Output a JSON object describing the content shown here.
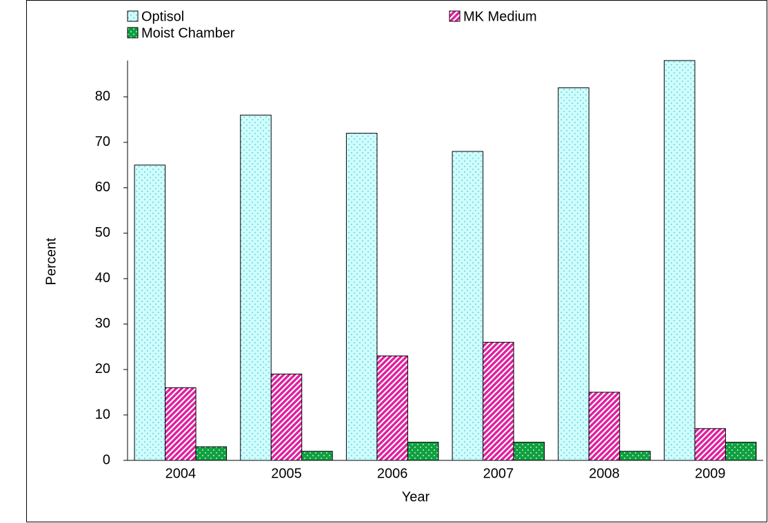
{
  "chart_data": {
    "type": "bar",
    "x_label": "Year",
    "y_label": "Percent",
    "categories": [
      "2004",
      "2005",
      "2006",
      "2007",
      "2008",
      "2009"
    ],
    "series": [
      {
        "name": "Optisol",
        "color": "#ccffff",
        "values": [
          65,
          76,
          72,
          68,
          82,
          88
        ]
      },
      {
        "name": "MK Medium",
        "color": "#e0209f",
        "values": [
          16,
          19,
          23,
          26,
          15,
          7
        ]
      },
      {
        "name": "Moist Chamber",
        "color": "#10a040",
        "values": [
          3,
          2,
          4,
          4,
          2,
          4
        ]
      }
    ],
    "ylim": [
      0,
      88
    ],
    "yticks": [
      0,
      10,
      20,
      30,
      40,
      50,
      60,
      70,
      80
    ],
    "grid": false
  }
}
